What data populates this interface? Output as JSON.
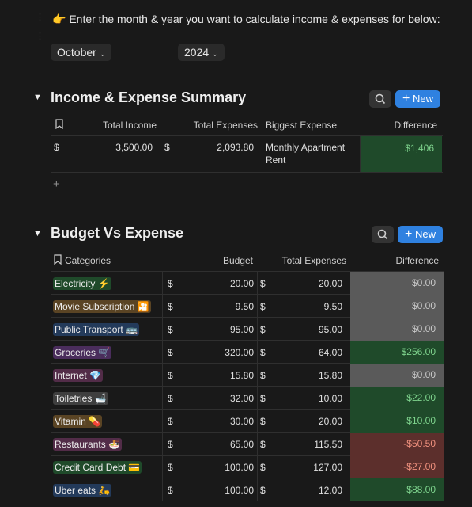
{
  "intro": {
    "emoji": "👉",
    "text": "Enter the month & year you want to calculate income & expenses for below:"
  },
  "filters": {
    "month": "October",
    "year": "2024"
  },
  "summary": {
    "title": "Income & Expense Summary",
    "new_label": "New",
    "headers": {
      "income": "Total Income",
      "expenses": "Total Expenses",
      "biggest": "Biggest Expense",
      "difference": "Difference"
    },
    "row": {
      "income_currency": "$",
      "income": "3,500.00",
      "expenses_currency": "$",
      "expenses": "2,093.80",
      "biggest_line1": "Monthly Apartment",
      "biggest_line2": "Rent",
      "difference": "$1,406"
    },
    "add_label": "+"
  },
  "budget": {
    "title": "Budget Vs Expense",
    "new_label": "New",
    "headers": {
      "categories": "Categories",
      "budget": "Budget",
      "expenses": "Total Expenses",
      "difference": "Difference"
    },
    "rows": [
      {
        "category": "Electricity ⚡",
        "tag_bg": "#1f4a2a",
        "cur1": "$",
        "budget": "20.00",
        "cur2": "$",
        "expense": "20.00",
        "diff": "$0.00",
        "diff_bg": "#5a5a5a",
        "diff_color": "#c8c8c8"
      },
      {
        "category": "Movie Subscription 🎦",
        "tag_bg": "#5a4424",
        "cur1": "$",
        "budget": "9.50",
        "cur2": "$",
        "expense": "9.50",
        "diff": "$0.00",
        "diff_bg": "#5a5a5a",
        "diff_color": "#c8c8c8"
      },
      {
        "category": "Public Transport 🚌",
        "tag_bg": "#233a5a",
        "cur1": "$",
        "budget": "95.00",
        "cur2": "$",
        "expense": "95.00",
        "diff": "$0.00",
        "diff_bg": "#5a5a5a",
        "diff_color": "#c8c8c8"
      },
      {
        "category": "Groceries 🛒",
        "tag_bg": "#4a2d5c",
        "cur1": "$",
        "budget": "320.00",
        "cur2": "$",
        "expense": "64.00",
        "diff": "$256.00",
        "diff_bg": "#1f4a2a",
        "diff_color": "#7fd48e"
      },
      {
        "category": "Internet 💎",
        "tag_bg": "#522c48",
        "cur1": "$",
        "budget": "15.80",
        "cur2": "$",
        "expense": "15.80",
        "diff": "$0.00",
        "diff_bg": "#5a5a5a",
        "diff_color": "#c8c8c8"
      },
      {
        "category": "Toiletries 🛁",
        "tag_bg": "#3f3f3f",
        "cur1": "$",
        "budget": "32.00",
        "cur2": "$",
        "expense": "10.00",
        "diff": "$22.00",
        "diff_bg": "#1f4a2a",
        "diff_color": "#7fd48e"
      },
      {
        "category": "Vitamin 💊",
        "tag_bg": "#5a4424",
        "cur1": "$",
        "budget": "30.00",
        "cur2": "$",
        "expense": "20.00",
        "diff": "$10.00",
        "diff_bg": "#1f4a2a",
        "diff_color": "#7fd48e"
      },
      {
        "category": "Restaurants 🍜",
        "tag_bg": "#522c48",
        "cur1": "$",
        "budget": "65.00",
        "cur2": "$",
        "expense": "115.50",
        "diff": "-$50.50",
        "diff_bg": "#5c2f2c",
        "diff_color": "#f0917e"
      },
      {
        "category": "Credit Card Debt 💳",
        "tag_bg": "#1f4a2a",
        "cur1": "$",
        "budget": "100.00",
        "cur2": "$",
        "expense": "127.00",
        "diff": "-$27.00",
        "diff_bg": "#5c2f2c",
        "diff_color": "#f0917e"
      },
      {
        "category": "Uber eats 🛵",
        "tag_bg": "#233a5a",
        "cur1": "$",
        "budget": "100.00",
        "cur2": "$",
        "expense": "12.00",
        "diff": "$88.00",
        "diff_bg": "#1f4a2a",
        "diff_color": "#7fd48e"
      }
    ]
  },
  "colors": {
    "background": "#191919",
    "accent": "#2f81e0",
    "positive_bg": "#1f4a2a",
    "negative_bg": "#5c2f2c",
    "neutral_bg": "#5a5a5a"
  }
}
